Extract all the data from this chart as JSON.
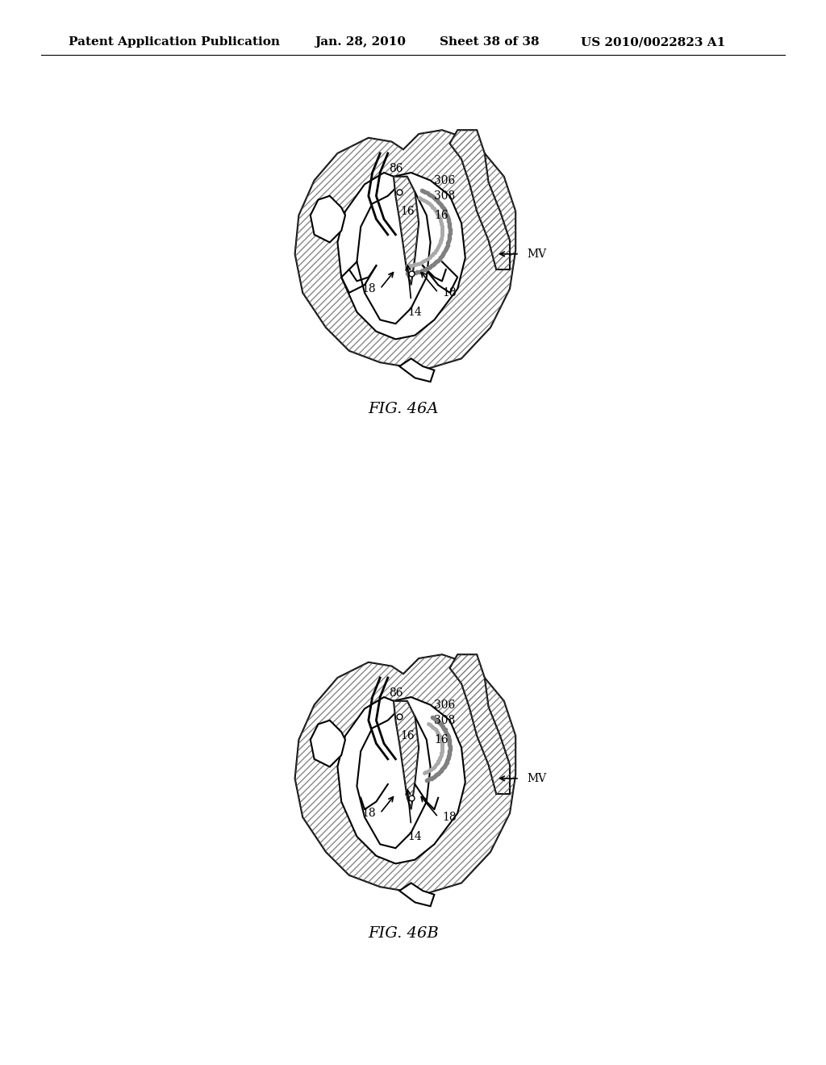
{
  "background_color": "#ffffff",
  "header_text": "Patent Application Publication",
  "header_date": "Jan. 28, 2010",
  "header_sheet": "Sheet 38 of 38",
  "header_patent": "US 2010/0022823 A1",
  "fig_label_a": "FIG. 46A",
  "fig_label_b": "FIG. 46B",
  "text_color": "#000000",
  "hatch_color": "#555555",
  "line_color": "#000000",
  "header_fontsize": 11,
  "label_fontsize": 14,
  "annotation_fontsize": 10
}
